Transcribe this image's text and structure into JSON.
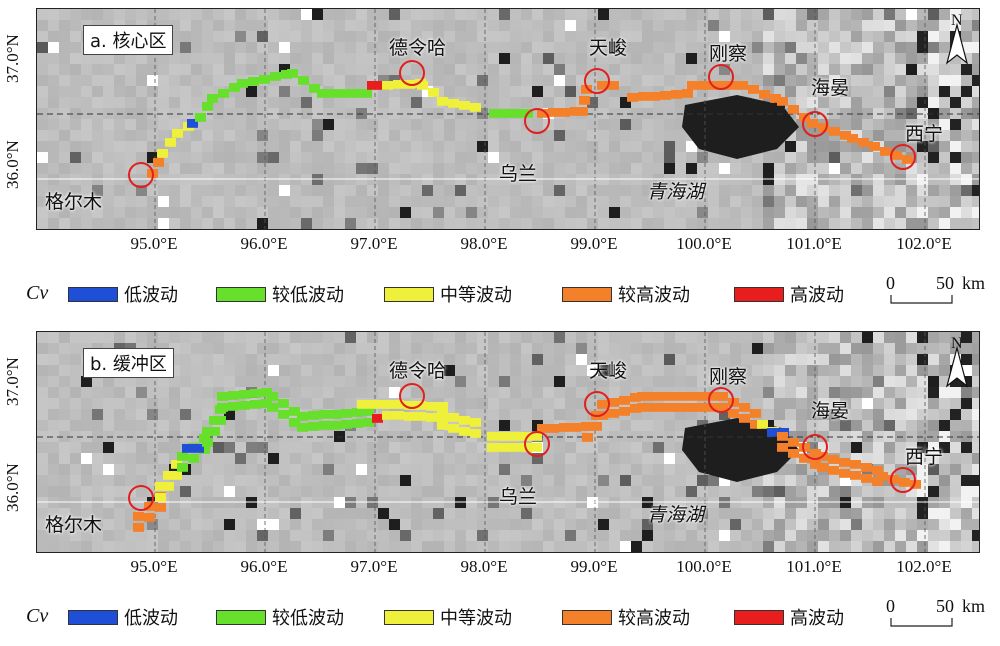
{
  "panels": [
    {
      "id": "a",
      "title": "a. 核心区",
      "places": {
        "delingha": "德令哈",
        "tianjun": "天峻",
        "gangcha": "刚察",
        "haiyan": "海晏",
        "xining": "西宁",
        "wulan": "乌兰",
        "golmud": "格尔木",
        "qinghai_lake": "青海湖"
      }
    },
    {
      "id": "b",
      "title": "b. 缓冲区",
      "places": {
        "delingha": "德令哈",
        "tianjun": "天峻",
        "gangcha": "刚察",
        "haiyan": "海晏",
        "xining": "西宁",
        "wulan": "乌兰",
        "golmud": "格尔木",
        "qinghai_lake": "青海湖"
      }
    }
  ],
  "axes": {
    "lat_ticks": [
      "37.0°N",
      "36.0°N"
    ],
    "lon_ticks": [
      "95.0°E",
      "96.0°E",
      "97.0°E",
      "98.0°E",
      "99.0°E",
      "100.0°E",
      "101.0°E",
      "102.0°E"
    ]
  },
  "north_arrow": "N",
  "legend": {
    "cv_label": "Cv",
    "items": [
      {
        "label": "低波动",
        "color": "#1f4fd6"
      },
      {
        "label": "较低波动",
        "color": "#66e02a"
      },
      {
        "label": "中等波动",
        "color": "#eef03a"
      },
      {
        "label": "较高波动",
        "color": "#f5802a"
      },
      {
        "label": "高波动",
        "color": "#e81e1e"
      }
    ],
    "scale_zero": "0",
    "scale_fifty": "50",
    "scale_unit": "km"
  },
  "colors": {
    "low": "#1f4fd6",
    "lower": "#66e02a",
    "medium": "#eef03a",
    "higher": "#f5802a",
    "high": "#e81e1e",
    "marker": "#e0201e",
    "lake": "#1e1e1e"
  }
}
